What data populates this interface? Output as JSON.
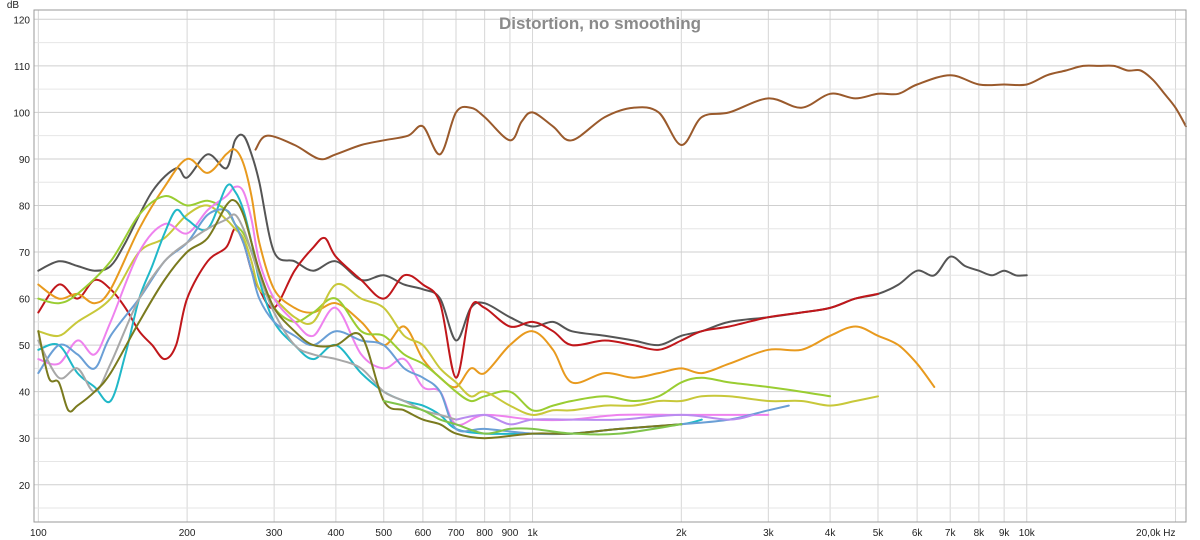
{
  "chart_data": {
    "type": "line",
    "title": "Distortion, no smoothing",
    "ylabel": "dB",
    "x_unit": "Hz",
    "xscale": "log",
    "xlim": [
      98,
      21000
    ],
    "ylim": [
      12,
      122
    ],
    "grid": true,
    "x_ticks": [
      {
        "v": 100,
        "label": "100"
      },
      {
        "v": 200,
        "label": "200"
      },
      {
        "v": 300,
        "label": "300"
      },
      {
        "v": 400,
        "label": "400"
      },
      {
        "v": 500,
        "label": "500"
      },
      {
        "v": 600,
        "label": "600"
      },
      {
        "v": 700,
        "label": "700"
      },
      {
        "v": 800,
        "label": "800"
      },
      {
        "v": 900,
        "label": "900"
      },
      {
        "v": 1000,
        "label": "1k"
      },
      {
        "v": 2000,
        "label": "2k"
      },
      {
        "v": 3000,
        "label": "3k"
      },
      {
        "v": 4000,
        "label": "4k"
      },
      {
        "v": 5000,
        "label": "5k"
      },
      {
        "v": 6000,
        "label": "6k"
      },
      {
        "v": 7000,
        "label": "7k"
      },
      {
        "v": 8000,
        "label": "8k"
      },
      {
        "v": 9000,
        "label": "9k"
      },
      {
        "v": 10000,
        "label": "10k"
      },
      {
        "v": 20000,
        "label": "20,0k"
      }
    ],
    "y_ticks": [
      {
        "v": 120,
        "label": "120"
      },
      {
        "v": 110,
        "label": "110"
      },
      {
        "v": 100,
        "label": "100"
      },
      {
        "v": 90,
        "label": "90"
      },
      {
        "v": 80,
        "label": "80"
      },
      {
        "v": 70,
        "label": "70"
      },
      {
        "v": 60,
        "label": "60"
      },
      {
        "v": 50,
        "label": "50"
      },
      {
        "v": 40,
        "label": "40"
      },
      {
        "v": 30,
        "label": "30"
      },
      {
        "v": 20,
        "label": "20"
      }
    ],
    "series": [
      {
        "color": "#9a5a2c",
        "x": [
          275,
          290,
          330,
          370,
          400,
          450,
          500,
          560,
          600,
          650,
          700,
          750,
          800,
          900,
          950,
          1000,
          1100,
          1200,
          1400,
          1600,
          1800,
          2000,
          2200,
          2500,
          3000,
          3500,
          4000,
          4500,
          5000,
          5500,
          6000,
          7000,
          8000,
          9000,
          10000,
          11000,
          12000,
          13000,
          14000,
          15000,
          16000,
          17000,
          18000,
          19000,
          20000,
          21000
        ],
        "y": [
          92,
          95,
          93,
          90,
          91,
          93,
          94,
          95,
          97,
          91,
          100,
          101,
          99,
          94,
          98,
          100,
          97,
          94,
          99,
          101,
          100,
          93,
          99,
          100,
          103,
          101,
          104,
          103,
          104,
          104,
          106,
          108,
          106,
          106,
          106,
          108,
          109,
          110,
          110,
          110,
          109,
          109,
          107,
          104,
          101,
          97
        ]
      },
      {
        "color": "#555555",
        "x": [
          100,
          110,
          120,
          130,
          140,
          150,
          170,
          190,
          200,
          220,
          240,
          250,
          260,
          270,
          280,
          300,
          330,
          360,
          400,
          450,
          500,
          550,
          600,
          650,
          700,
          750,
          800,
          900,
          1000,
          1100,
          1200,
          1400,
          1600,
          1800,
          2000,
          2200,
          2500,
          3000,
          3500,
          4000,
          4500,
          5000,
          5500,
          6000,
          6500,
          7000,
          7500,
          8000,
          8500,
          9000,
          9500,
          10000
        ],
        "y": [
          66,
          68,
          67,
          66,
          67,
          72,
          83,
          88,
          86,
          91,
          88,
          94,
          95,
          91,
          85,
          70,
          68,
          66,
          68,
          64,
          65,
          63,
          62,
          60,
          51,
          58,
          59,
          56,
          54,
          55,
          53,
          52,
          51,
          50,
          52,
          53,
          55,
          56,
          57,
          58,
          60,
          61,
          63,
          66,
          65,
          69,
          67,
          66,
          65,
          66,
          65,
          65
        ]
      },
      {
        "color": "#c0171b",
        "x": [
          100,
          110,
          120,
          130,
          140,
          150,
          160,
          170,
          180,
          190,
          200,
          220,
          240,
          250,
          260,
          270,
          280,
          300,
          330,
          360,
          380,
          400,
          450,
          500,
          550,
          600,
          650,
          700,
          750,
          800,
          900,
          1000,
          1100,
          1200,
          1400,
          1600,
          1800,
          2000,
          2200,
          2500,
          3000,
          3500,
          4000,
          4500,
          5000
        ],
        "y": [
          57,
          63,
          60,
          64,
          62,
          58,
          53,
          50,
          47,
          50,
          60,
          68,
          71,
          75,
          72,
          66,
          62,
          58,
          66,
          71,
          73,
          69,
          64,
          60,
          65,
          63,
          59,
          43,
          58,
          58,
          54,
          55,
          53,
          50,
          51,
          50,
          49,
          51,
          53,
          54,
          56,
          57,
          58,
          60,
          61
        ]
      },
      {
        "color": "#e89a1e",
        "x": [
          100,
          110,
          120,
          130,
          140,
          160,
          180,
          200,
          220,
          240,
          250,
          260,
          270,
          280,
          300,
          330,
          360,
          400,
          450,
          500,
          550,
          600,
          650,
          700,
          750,
          800,
          900,
          1000,
          1100,
          1200,
          1400,
          1600,
          1800,
          2000,
          2200,
          2500,
          3000,
          3500,
          4000,
          4500,
          5000,
          5500,
          6000,
          6500
        ],
        "y": [
          63,
          60,
          61,
          59,
          62,
          75,
          84,
          90,
          87,
          91,
          92,
          89,
          82,
          72,
          62,
          58,
          57,
          59,
          55,
          50,
          54,
          47,
          43,
          41,
          45,
          44,
          50,
          53,
          49,
          42,
          44,
          43,
          44,
          45,
          44,
          46,
          49,
          49,
          52,
          54,
          52,
          50,
          46,
          41
        ]
      },
      {
        "color": "#9acd32",
        "x": [
          100,
          110,
          120,
          140,
          160,
          180,
          200,
          220,
          240,
          250,
          260,
          270,
          280,
          300,
          330,
          360,
          400,
          450,
          500,
          550,
          600,
          650,
          700,
          750,
          800,
          900,
          1000,
          1100,
          1200,
          1400,
          1600,
          1800,
          2000,
          2200,
          2500,
          3000,
          3500,
          4000
        ],
        "y": [
          60,
          59,
          61,
          68,
          78,
          82,
          80,
          81,
          79,
          76,
          74,
          70,
          65,
          58,
          55,
          57,
          60,
          53,
          52,
          48,
          46,
          43,
          40,
          38,
          39,
          40,
          36,
          37,
          38,
          39,
          38,
          39,
          42,
          43,
          42,
          41,
          40,
          39
        ]
      },
      {
        "color": "#c8c83a",
        "x": [
          100,
          110,
          120,
          140,
          160,
          180,
          200,
          220,
          240,
          250,
          260,
          270,
          280,
          300,
          330,
          360,
          400,
          450,
          500,
          550,
          600,
          650,
          700,
          750,
          800,
          900,
          1000,
          1100,
          1200,
          1400,
          1600,
          1800,
          2000,
          2200,
          2500,
          3000,
          3500,
          4000,
          4500,
          5000
        ],
        "y": [
          53,
          52,
          55,
          60,
          70,
          73,
          78,
          80,
          77,
          75,
          73,
          68,
          62,
          60,
          56,
          55,
          63,
          60,
          58,
          52,
          50,
          45,
          42,
          39,
          40,
          37,
          35,
          36,
          36,
          37,
          37,
          38,
          38,
          39,
          39,
          38,
          38,
          37,
          38,
          39
        ]
      },
      {
        "color": "#ee82ee",
        "x": [
          100,
          110,
          120,
          130,
          140,
          160,
          180,
          200,
          220,
          240,
          250,
          260,
          270,
          280,
          300,
          330,
          360,
          400,
          450,
          500,
          550,
          600,
          650,
          700,
          800,
          1000,
          1200,
          1500,
          2000,
          2500,
          3000
        ],
        "y": [
          47,
          46,
          51,
          48,
          55,
          70,
          76,
          74,
          79,
          82,
          84,
          83,
          77,
          68,
          60,
          55,
          52,
          58,
          48,
          45,
          47,
          41,
          40,
          33,
          35,
          34,
          34,
          35,
          35,
          35,
          35
        ]
      },
      {
        "color": "#20b8c8",
        "x": [
          100,
          110,
          120,
          130,
          140,
          150,
          160,
          170,
          180,
          190,
          200,
          220,
          240,
          250,
          260,
          270,
          280,
          300,
          330,
          360,
          400,
          450,
          500,
          550,
          600,
          650,
          700,
          800,
          1000,
          1200,
          1500,
          2000,
          2200
        ],
        "y": [
          49,
          50,
          44,
          41,
          38,
          48,
          60,
          67,
          74,
          79,
          77,
          75,
          84,
          83,
          79,
          72,
          64,
          55,
          50,
          47,
          50,
          44,
          40,
          38,
          37,
          35,
          32,
          31,
          31,
          31,
          32,
          33,
          34
        ]
      },
      {
        "color": "#6a9fd6",
        "x": [
          100,
          110,
          120,
          130,
          140,
          160,
          180,
          200,
          220,
          240,
          250,
          260,
          270,
          280,
          300,
          330,
          360,
          400,
          450,
          500,
          550,
          600,
          650,
          700,
          800,
          1000,
          1200,
          1500,
          2000,
          2500,
          3000,
          3300
        ],
        "y": [
          44,
          50,
          48,
          45,
          52,
          60,
          68,
          72,
          78,
          79,
          76,
          72,
          66,
          60,
          55,
          52,
          50,
          53,
          51,
          50,
          45,
          43,
          40,
          32,
          32,
          31,
          31,
          32,
          33,
          34,
          36,
          37
        ]
      },
      {
        "color": "#a8a8a8",
        "x": [
          100,
          110,
          120,
          130,
          140,
          160,
          180,
          200,
          220,
          240,
          250,
          260,
          270,
          280,
          300,
          330,
          360,
          400,
          450,
          500,
          550,
          600,
          650,
          700
        ],
        "y": [
          51,
          43,
          45,
          40,
          46,
          60,
          68,
          72,
          75,
          77,
          78,
          75,
          70,
          65,
          57,
          50,
          48,
          47,
          45,
          40,
          38,
          36,
          35,
          34
        ]
      },
      {
        "color": "#7a7a1e",
        "x": [
          100,
          105,
          110,
          115,
          120,
          130,
          140,
          160,
          180,
          200,
          220,
          240,
          250,
          260,
          270,
          280,
          300,
          330,
          360,
          400,
          450,
          500,
          550,
          600,
          650,
          700,
          800,
          1000,
          1200,
          1500,
          2000
        ],
        "y": [
          53,
          43,
          42,
          36,
          37,
          40,
          44,
          55,
          64,
          70,
          73,
          80,
          81,
          78,
          72,
          66,
          58,
          53,
          50,
          50,
          52,
          38,
          36,
          34,
          33,
          31,
          30,
          31,
          31,
          32,
          33
        ]
      },
      {
        "color": "#7fc44a",
        "x": [
          500,
          550,
          600,
          650,
          700,
          800,
          900,
          1000,
          1200,
          1500,
          2000
        ],
        "y": [
          38,
          37,
          36,
          34,
          33,
          31,
          32,
          32,
          31,
          31,
          33
        ]
      },
      {
        "color": "#b98cf0",
        "x": [
          700,
          800,
          900,
          1000,
          1200,
          1500,
          2000,
          2500,
          2800
        ],
        "y": [
          34,
          35,
          33,
          34,
          34,
          34,
          35,
          34,
          35
        ]
      }
    ]
  }
}
